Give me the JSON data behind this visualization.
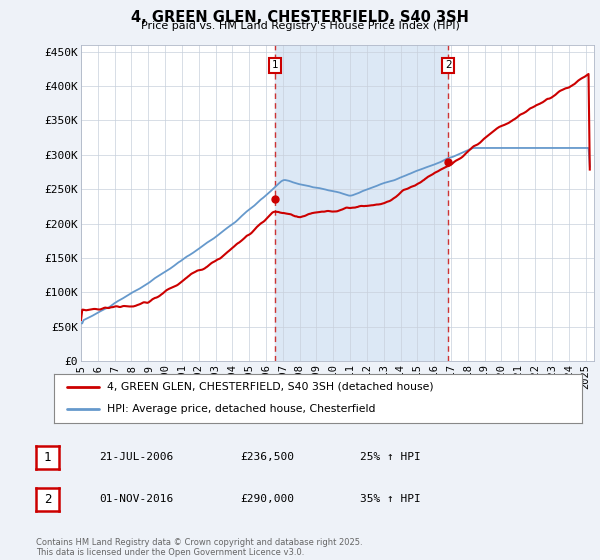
{
  "title": "4, GREEN GLEN, CHESTERFIELD, S40 3SH",
  "subtitle": "Price paid vs. HM Land Registry's House Price Index (HPI)",
  "background_color": "#eef2f8",
  "plot_bg_color": "#ffffff",
  "shaded_region_color": "#dce8f5",
  "ylabel_ticks": [
    "£0",
    "£50K",
    "£100K",
    "£150K",
    "£200K",
    "£250K",
    "£300K",
    "£350K",
    "£400K",
    "£450K"
  ],
  "ytick_values": [
    0,
    50000,
    100000,
    150000,
    200000,
    250000,
    300000,
    350000,
    400000,
    450000
  ],
  "ylim": [
    0,
    460000
  ],
  "xlim_start": 1995.0,
  "xlim_end": 2025.5,
  "year_ticks": [
    1995,
    1996,
    1997,
    1998,
    1999,
    2000,
    2001,
    2002,
    2003,
    2004,
    2005,
    2006,
    2007,
    2008,
    2009,
    2010,
    2011,
    2012,
    2013,
    2014,
    2015,
    2016,
    2017,
    2018,
    2019,
    2020,
    2021,
    2022,
    2023,
    2024,
    2025
  ],
  "red_line_color": "#cc0000",
  "blue_line_color": "#6699cc",
  "dashed_line_color": "#cc3333",
  "sale1_x": 2006.55,
  "sale1_y": 236500,
  "sale2_x": 2016.83,
  "sale2_y": 290000,
  "legend_red_label": "4, GREEN GLEN, CHESTERFIELD, S40 3SH (detached house)",
  "legend_blue_label": "HPI: Average price, detached house, Chesterfield",
  "table_row1": [
    "1",
    "21-JUL-2006",
    "£236,500",
    "25% ↑ HPI"
  ],
  "table_row2": [
    "2",
    "01-NOV-2016",
    "£290,000",
    "35% ↑ HPI"
  ],
  "footer": "Contains HM Land Registry data © Crown copyright and database right 2025.\nThis data is licensed under the Open Government Licence v3.0."
}
